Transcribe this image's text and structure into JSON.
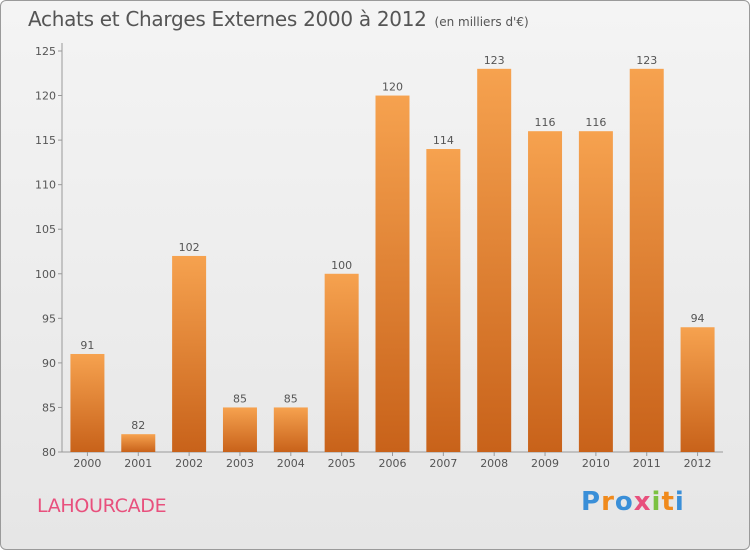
{
  "header": {
    "title": "Achats et Charges Externes 2000 à 2012",
    "subtitle": "(en milliers d'€)"
  },
  "footer": {
    "commune": "LAHOURCADE",
    "logo_letters": [
      "P",
      "r",
      "o",
      "x",
      "i",
      "t",
      "i"
    ],
    "logo_colors": [
      "#3a8fd8",
      "#f08a1c",
      "#3a8fd8",
      "#e8507d",
      "#7cc242",
      "#f08a1c",
      "#3a8fd8"
    ]
  },
  "colors": {
    "bar_light": "#f6a24f",
    "bar_dark": "#c8621a",
    "axis": "#999999",
    "text": "#555555",
    "commune": "#e8507d"
  },
  "chart_data": {
    "type": "bar",
    "categories": [
      "2000",
      "2001",
      "2002",
      "2003",
      "2004",
      "2005",
      "2006",
      "2007",
      "2008",
      "2009",
      "2010",
      "2011",
      "2012"
    ],
    "values": [
      91,
      82,
      102,
      85,
      85,
      100,
      120,
      114,
      123,
      116,
      116,
      123,
      94
    ],
    "ylim": [
      80,
      125
    ],
    "yticks": [
      80,
      85,
      90,
      95,
      100,
      105,
      110,
      115,
      120,
      125
    ],
    "grid": false,
    "legend": "none"
  }
}
